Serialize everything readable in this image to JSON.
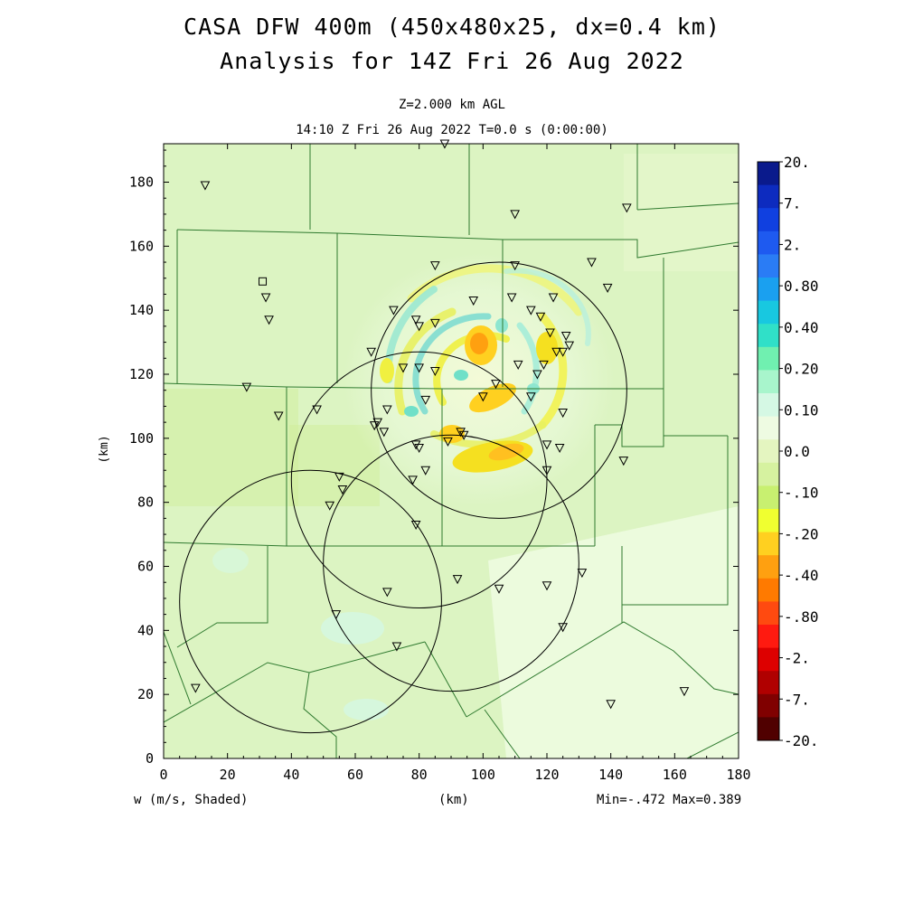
{
  "header": {
    "title_line1": "CASA DFW 400m (450x480x25, dx=0.4 km)",
    "title_line2": "Analysis for 14Z Fri 26 Aug 2022",
    "level": "Z=2.000 km AGL",
    "valid_time": "14:10 Z Fri 26 Aug 2022    T=0.0 s (0:00:00)"
  },
  "axes": {
    "x_label": "(km)",
    "y_label": "(km)",
    "x_ticks": [
      0,
      20,
      40,
      60,
      80,
      100,
      120,
      140,
      160,
      180
    ],
    "y_ticks": [
      0,
      20,
      40,
      60,
      80,
      100,
      120,
      140,
      160,
      180
    ],
    "x_range": [
      0,
      180
    ],
    "y_range": [
      0,
      192
    ]
  },
  "footer": {
    "field_label": "w (m/s, Shaded)",
    "center_label": "(km)",
    "minmax": "Min=-.472 Max=0.389"
  },
  "colorbar": {
    "labels": [
      "20.",
      "7.",
      "2.",
      "0.80",
      "0.40",
      "0.20",
      "0.10",
      "0.0",
      "-.10",
      "-.20",
      "-.40",
      "-.80",
      "-2.",
      "-7.",
      "-20."
    ],
    "colors": [
      "#0a1a8c",
      "#0d2bbf",
      "#1040e0",
      "#1e5af0",
      "#2a7cf5",
      "#1aa0f0",
      "#18c8e0",
      "#30e0c8",
      "#70f0b0",
      "#a8f5cc",
      "#d5f8e4",
      "#eefbe2",
      "#e4f5c0",
      "#d6f2a0",
      "#c8f070",
      "#f0ff30",
      "#ffd020",
      "#ffa010",
      "#ff7a00",
      "#ff4a10",
      "#ff1a10",
      "#dd0000",
      "#b00000",
      "#800000",
      "#500000"
    ]
  },
  "map": {
    "radar_rings": [
      {
        "center": [
          46,
          49
        ],
        "radius_km": 41
      },
      {
        "center": [
          80,
          87
        ],
        "radius_km": 40
      },
      {
        "center": [
          105,
          115
        ],
        "radius_km": 40
      },
      {
        "center": [
          90,
          61
        ],
        "radius_km": 40
      }
    ],
    "stations_km": [
      [
        13,
        179
      ],
      [
        88,
        192
      ],
      [
        110,
        170
      ],
      [
        145,
        172
      ],
      [
        134,
        155
      ],
      [
        139,
        147
      ],
      [
        85,
        154
      ],
      [
        110,
        154
      ],
      [
        122,
        144
      ],
      [
        109,
        144
      ],
      [
        97,
        143
      ],
      [
        32,
        144
      ],
      [
        33,
        137
      ],
      [
        72,
        140
      ],
      [
        79,
        137
      ],
      [
        85,
        136
      ],
      [
        80,
        135
      ],
      [
        115,
        140
      ],
      [
        118,
        138
      ],
      [
        121,
        133
      ],
      [
        126,
        132
      ],
      [
        127,
        129
      ],
      [
        123,
        127
      ],
      [
        125,
        127
      ],
      [
        65,
        127
      ],
      [
        111,
        123
      ],
      [
        119,
        123
      ],
      [
        117,
        120
      ],
      [
        75,
        122
      ],
      [
        80,
        122
      ],
      [
        85,
        121
      ],
      [
        104,
        117
      ],
      [
        26,
        116
      ],
      [
        82,
        112
      ],
      [
        100,
        113
      ],
      [
        115,
        113
      ],
      [
        125,
        108
      ],
      [
        48,
        109
      ],
      [
        36,
        107
      ],
      [
        70,
        109
      ],
      [
        67,
        105
      ],
      [
        66,
        104
      ],
      [
        69,
        102
      ],
      [
        93,
        102
      ],
      [
        94,
        101
      ],
      [
        89,
        99
      ],
      [
        79,
        98
      ],
      [
        80,
        97
      ],
      [
        120,
        98
      ],
      [
        124,
        97
      ],
      [
        144,
        93
      ],
      [
        120,
        90
      ],
      [
        82,
        90
      ],
      [
        78,
        87
      ],
      [
        55,
        88
      ],
      [
        56,
        84
      ],
      [
        52,
        79
      ],
      [
        79,
        73
      ],
      [
        131,
        58
      ],
      [
        92,
        56
      ],
      [
        105,
        53
      ],
      [
        120,
        54
      ],
      [
        70,
        52
      ],
      [
        54,
        45
      ],
      [
        125,
        41
      ],
      [
        73,
        35
      ],
      [
        10,
        22
      ],
      [
        140,
        17
      ],
      [
        163,
        21
      ]
    ],
    "square_station_km": [
      31,
      149
    ]
  }
}
